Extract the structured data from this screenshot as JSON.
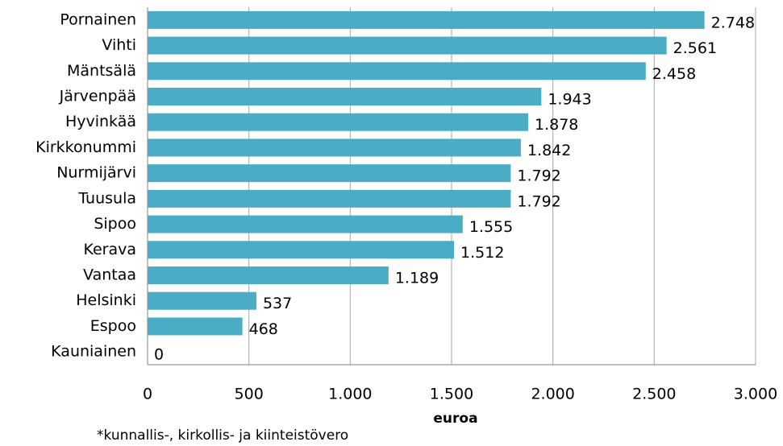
{
  "chart_data": {
    "type": "bar",
    "orientation": "horizontal",
    "categories": [
      "Pornainen",
      "Vihti",
      "Mäntsälä",
      "Järvenpää",
      "Hyvinkää",
      "Kirkkonummi",
      "Nurmijärvi",
      "Tuusula",
      "Sipoo",
      "Kerava",
      "Vantaa",
      "Helsinki",
      "Espoo",
      "Kauniainen"
    ],
    "values": [
      2748,
      2561,
      2458,
      1943,
      1878,
      1842,
      1792,
      1792,
      1555,
      1512,
      1189,
      537,
      468,
      0
    ],
    "value_labels": [
      "2.748",
      "2.561",
      "2.458",
      "1.943",
      "1.878",
      "1.842",
      "1.792",
      "1.792",
      "1.555",
      "1.512",
      "1.189",
      "537",
      "468",
      "0"
    ],
    "color": "#4bacc6",
    "xlim": [
      0,
      3000
    ],
    "xticks": [
      0,
      500,
      {
        "value": 1000,
        "label": "1.000"
      },
      {
        "value": 1500,
        "label": "1.500"
      },
      {
        "value": 2000,
        "label": "2.000"
      },
      {
        "value": 2500,
        "label": "2.500"
      },
      {
        "value": 3000,
        "label": "3.000"
      }
    ],
    "grid": true,
    "xlabel": "euroa",
    "note": "*kunnallis-, kirkollis- ja kiinteistövero"
  }
}
